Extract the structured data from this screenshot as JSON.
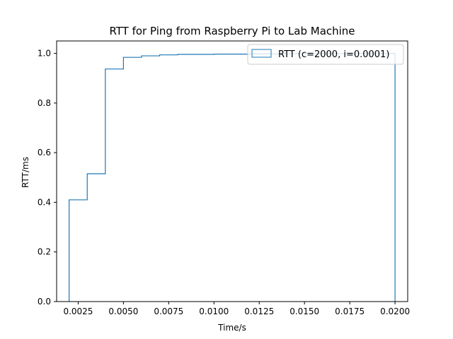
{
  "chart_data": {
    "type": "line",
    "style": "step-histogram-cumulative",
    "title": "RTT for Ping from Raspberry Pi to Lab Machine",
    "xlabel": "Time/s",
    "ylabel": "RTT/ms",
    "xlim": [
      0.00131,
      0.0207
    ],
    "ylim": [
      0.0,
      1.05
    ],
    "xticks": [
      0.0025,
      0.005,
      0.0075,
      0.01,
      0.0125,
      0.015,
      0.0175,
      0.02
    ],
    "xtick_labels": [
      "0.0025",
      "0.0050",
      "0.0075",
      "0.0100",
      "0.0125",
      "0.0150",
      "0.0175",
      "0.0200"
    ],
    "yticks": [
      0.0,
      0.2,
      0.4,
      0.6,
      0.8,
      1.0
    ],
    "ytick_labels": [
      "0.0",
      "0.2",
      "0.4",
      "0.6",
      "0.8",
      "1.0"
    ],
    "grid": false,
    "legend_position": "top-right",
    "series": [
      {
        "name": "RTT (c=2000, i=0.0001)",
        "color": "#1f77b4",
        "bin_edges": [
          0.002,
          0.003,
          0.004,
          0.005,
          0.006,
          0.007,
          0.008,
          0.009,
          0.01,
          0.011,
          0.012,
          0.013,
          0.014,
          0.015,
          0.016,
          0.017,
          0.018,
          0.019,
          0.02
        ],
        "values": [
          0.41,
          0.515,
          0.937,
          0.984,
          0.99,
          0.994,
          0.996,
          0.996,
          0.997,
          0.997,
          0.998,
          0.998,
          0.999,
          0.999,
          0.999,
          0.999,
          1.0,
          1.0
        ]
      }
    ]
  }
}
